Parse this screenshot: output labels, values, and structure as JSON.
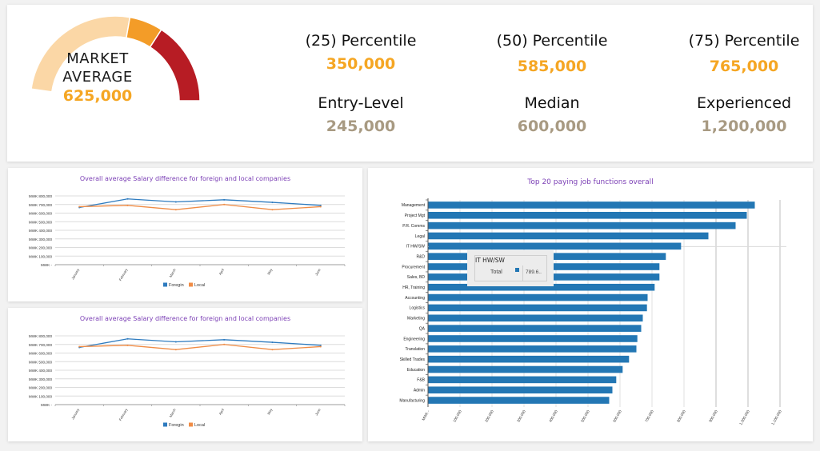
{
  "summary": {
    "gauge": {
      "line1": "MARKET",
      "line2": "AVERAGE",
      "value": "625,000",
      "colors": [
        "#fbd7a6",
        "#f39c28",
        "#b71c24"
      ]
    },
    "stats": [
      {
        "label": "(25) Percentile",
        "value": "350,000",
        "tone": "orange"
      },
      {
        "label": "(50) Percentile",
        "value": "585,000",
        "tone": "orange"
      },
      {
        "label": "(75) Percentile",
        "value": "765,000",
        "tone": "orange"
      },
      {
        "label": "Entry-Level",
        "value": "245,000",
        "tone": "taupe"
      },
      {
        "label": "Median",
        "value": "600,000",
        "tone": "taupe"
      },
      {
        "label": "Experienced",
        "value": "1,200,000",
        "tone": "taupe"
      }
    ]
  },
  "chart_data": [
    {
      "type": "line",
      "title": "Overall average Salary difference for foreign and local companies",
      "categories": [
        "January",
        "February",
        "March",
        "April",
        "May",
        "June"
      ],
      "yticks": [
        "MWK -",
        "MWK 100,000",
        "MWK 200,000",
        "MWK 300,000",
        "MWK 400,000",
        "MWK 500,000",
        "MWK 600,000",
        "MWK 700,000",
        "MWK 800,000"
      ],
      "ylim": [
        0,
        800000
      ],
      "series": [
        {
          "name": "Foregin",
          "color": "#2e7bbf",
          "values": [
            665000,
            765000,
            730000,
            755000,
            725000,
            690000
          ]
        },
        {
          "name": "Local",
          "color": "#f08c45",
          "values": [
            675000,
            690000,
            640000,
            700000,
            640000,
            675000
          ]
        }
      ],
      "legend": "bottom",
      "grid": true
    },
    {
      "type": "line",
      "title": "Overall average Salary difference for foreign and local companies",
      "categories": [
        "January",
        "February",
        "March",
        "April",
        "May",
        "June"
      ],
      "yticks": [
        "MWK -",
        "MWK 100,000",
        "MWK 200,000",
        "MWK 300,000",
        "MWK 400,000",
        "MWK 500,000",
        "MWK 600,000",
        "MWK 700,000",
        "MWK 800,000"
      ],
      "ylim": [
        0,
        800000
      ],
      "series": [
        {
          "name": "Foregin",
          "color": "#2e7bbf",
          "values": [
            665000,
            765000,
            730000,
            755000,
            725000,
            690000
          ]
        },
        {
          "name": "Local",
          "color": "#f08c45",
          "values": [
            675000,
            690000,
            640000,
            700000,
            640000,
            675000
          ]
        }
      ],
      "legend": "bottom",
      "grid": true
    },
    {
      "type": "bar",
      "orientation": "horizontal",
      "title": "Top 20 paying job functions overall",
      "color": "#2377b4",
      "categories": [
        "Management",
        "Project Mgt",
        "P.R. Comms",
        "Legal",
        "IT HW/SW",
        "R&D",
        "Procurement",
        "Sales, BD",
        "HR, Training",
        "Accounting",
        "Logistics",
        "Marketing",
        "QA",
        "Engineering",
        "Translation",
        "Skilled Trades",
        "Education",
        "F&B",
        "Admin",
        "Manufacturing"
      ],
      "values": [
        1020000,
        995000,
        960000,
        875000,
        789600,
        742000,
        722000,
        722000,
        707000,
        685000,
        683000,
        670000,
        665000,
        653000,
        650000,
        627000,
        607000,
        587000,
        575000,
        565000
      ],
      "xticks": [
        "MWK -",
        "100,000",
        "200,000",
        "300,000",
        "400,000",
        "500,000",
        "600,000",
        "700,000",
        "800,000",
        "900,000",
        "1,000,000",
        "1,100,000"
      ],
      "xlim": [
        0,
        1100000
      ],
      "grid": true,
      "tooltip": {
        "category": "IT HW/SW",
        "series": "Total",
        "value": "789.6.."
      }
    }
  ]
}
